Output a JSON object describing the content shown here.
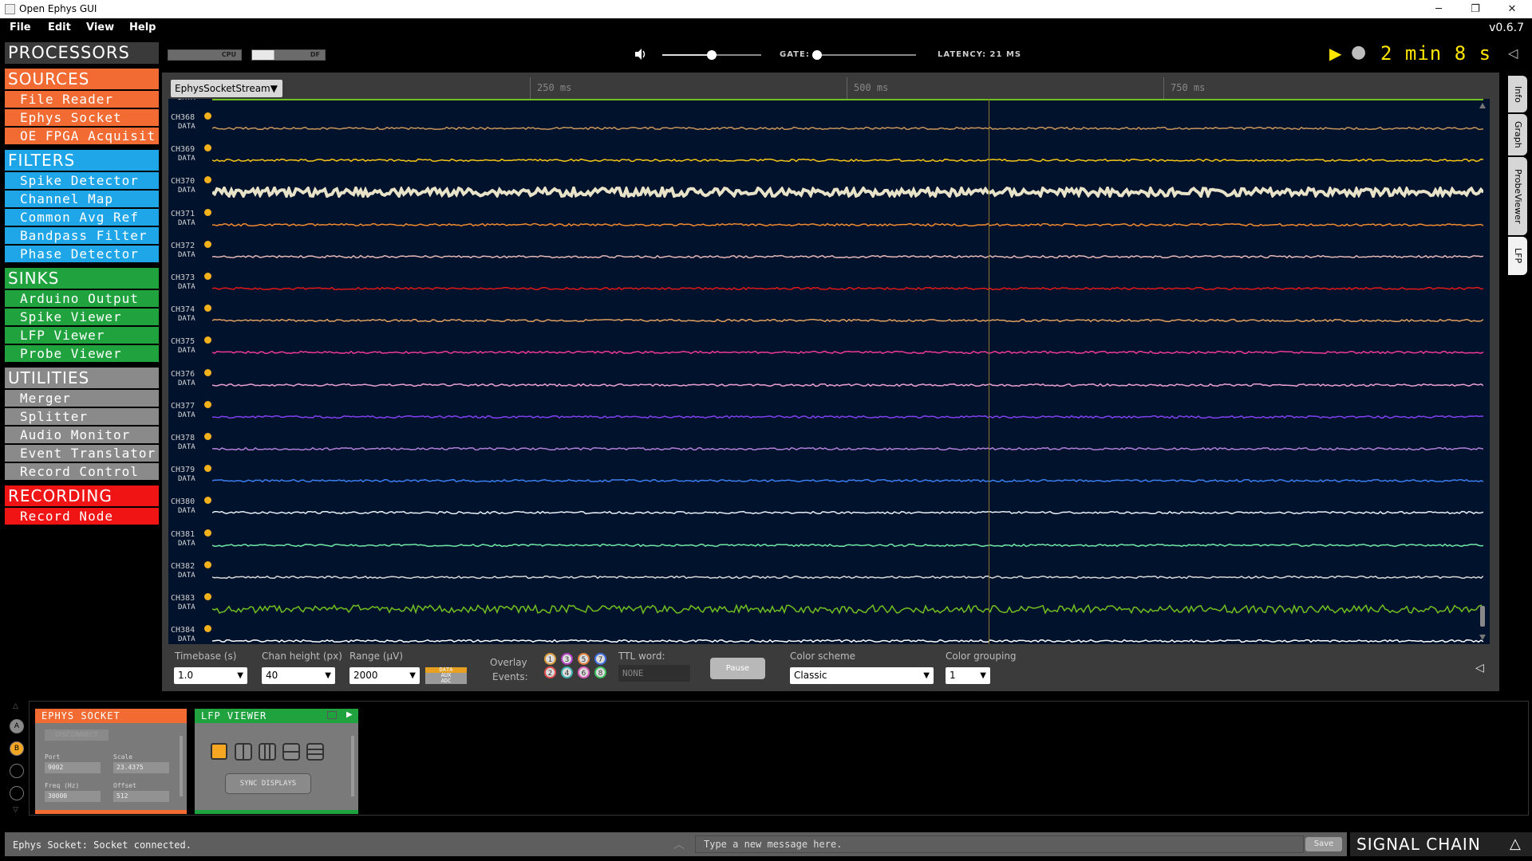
{
  "window": {
    "title": "Open Ephys GUI",
    "minimize": "─",
    "maximize": "❐",
    "close": "✕"
  },
  "menu": {
    "items": [
      "File",
      "Edit",
      "View",
      "Help"
    ],
    "version": "v0.6.7"
  },
  "processors": {
    "header": "PROCESSORS",
    "categories": [
      {
        "name": "SOURCES",
        "color": "#f26b33",
        "items": [
          "File Reader",
          "Ephys Socket",
          "OE FPGA Acquisit"
        ]
      },
      {
        "name": "FILTERS",
        "color": "#1fa6e8",
        "items": [
          "Spike Detector",
          "Channel Map",
          "Common Avg Ref",
          "Bandpass Filter",
          "Phase Detector"
        ]
      },
      {
        "name": "SINKS",
        "color": "#20a33f",
        "items": [
          "Arduino Output",
          "Spike Viewer",
          "LFP Viewer",
          "Probe Viewer"
        ]
      },
      {
        "name": "UTILITIES",
        "color": "#8a8a8a",
        "items": [
          "Merger",
          "Splitter",
          "Audio Monitor",
          "Event Translator",
          "Record Control"
        ]
      },
      {
        "name": "RECORDING",
        "color": "#f01414",
        "items": [
          "Record Node"
        ]
      }
    ]
  },
  "controls": {
    "cpu_label": "CPU",
    "df_label": "DF",
    "volume_level": 0.5,
    "gate_label": "GATE:",
    "gate_level": 0.0,
    "latency_label": "LATENCY: 21 MS",
    "play_icon": "▶",
    "record_icon": "●",
    "clock": "2 min 8 s",
    "collapse_icon": "◁"
  },
  "lfp": {
    "stream": "EphysSocketStream",
    "ticks": [
      "250 ms",
      "500 ms",
      "750 ms"
    ],
    "top_partial_type": "DATA",
    "channels": [
      {
        "name": "CH368",
        "type": "DATA",
        "color": "#c8965a"
      },
      {
        "name": "CH369",
        "type": "DATA",
        "color": "#f5c518"
      },
      {
        "name": "CH370",
        "type": "DATA",
        "color": "#e8e2c8"
      },
      {
        "name": "CH371",
        "type": "DATA",
        "color": "#f08a30"
      },
      {
        "name": "CH372",
        "type": "DATA",
        "color": "#e6b8b8"
      },
      {
        "name": "CH373",
        "type": "DATA",
        "color": "#e01818"
      },
      {
        "name": "CH374",
        "type": "DATA",
        "color": "#e0a060"
      },
      {
        "name": "CH375",
        "type": "DATA",
        "color": "#ee3a96"
      },
      {
        "name": "CH376",
        "type": "DATA",
        "color": "#e8a0d0"
      },
      {
        "name": "CH377",
        "type": "DATA",
        "color": "#8040f0"
      },
      {
        "name": "CH378",
        "type": "DATA",
        "color": "#b080d8"
      },
      {
        "name": "CH379",
        "type": "DATA",
        "color": "#3a7ef0"
      },
      {
        "name": "CH380",
        "type": "DATA",
        "color": "#e8f0f8"
      },
      {
        "name": "CH381",
        "type": "DATA",
        "color": "#70e8a8"
      },
      {
        "name": "CH382",
        "type": "DATA",
        "color": "#d8d8d8"
      },
      {
        "name": "CH383",
        "type": "DATA",
        "color": "#70c020"
      },
      {
        "name": "CH384",
        "type": "DATA",
        "color": "#ffffff"
      }
    ],
    "side_tabs": [
      "Info",
      "Graph",
      "ProbeViewer",
      "LFP"
    ],
    "options": {
      "timebase_label": "Timebase (s)",
      "timebase_value": "1.0",
      "chan_height_label": "Chan height (px)",
      "chan_height_value": "40",
      "range_label": "Range (µV)",
      "range_value": "2000",
      "type_buttons": [
        "DATA",
        "AUX",
        "ADC"
      ],
      "overlay_label": "Overlay",
      "events_label": "Events:",
      "event_buttons_top": [
        "1",
        "3",
        "5",
        "7"
      ],
      "event_buttons_bottom": [
        "2",
        "4",
        "6",
        "8"
      ],
      "event_colors": [
        "#d89a3a",
        "#e05050",
        "#b040c0",
        "#40b0b0",
        "#e08040",
        "#e060c0",
        "#4070e0",
        "#40c060"
      ],
      "ttl_label": "TTL word:",
      "ttl_value": "NONE",
      "pause_label": "Pause",
      "color_scheme_label": "Color scheme",
      "color_scheme_value": "Classic",
      "color_grouping_label": "Color grouping",
      "color_grouping_value": "1"
    }
  },
  "chain": {
    "tabs": [
      "A",
      "B"
    ],
    "ephys_socket": {
      "title": "EPHYS SOCKET",
      "button": "DISCONNECT",
      "port_label": "Port",
      "port_value": "9002",
      "scale_label": "Scale",
      "scale_value": "23.4375",
      "freq_label": "Freq (Hz)",
      "freq_value": "30000",
      "offset_label": "Offset",
      "offset_value": "512"
    },
    "lfp_viewer": {
      "title": "LFP VIEWER",
      "sync_label": "SYNC DISPLAYS"
    }
  },
  "status": {
    "message": "Ephys Socket: Socket connected.",
    "input_placeholder": "Type a new message here.",
    "save_label": "Save",
    "signal_chain_label": "SIGNAL CHAIN",
    "signal_chain_icon": "△"
  }
}
